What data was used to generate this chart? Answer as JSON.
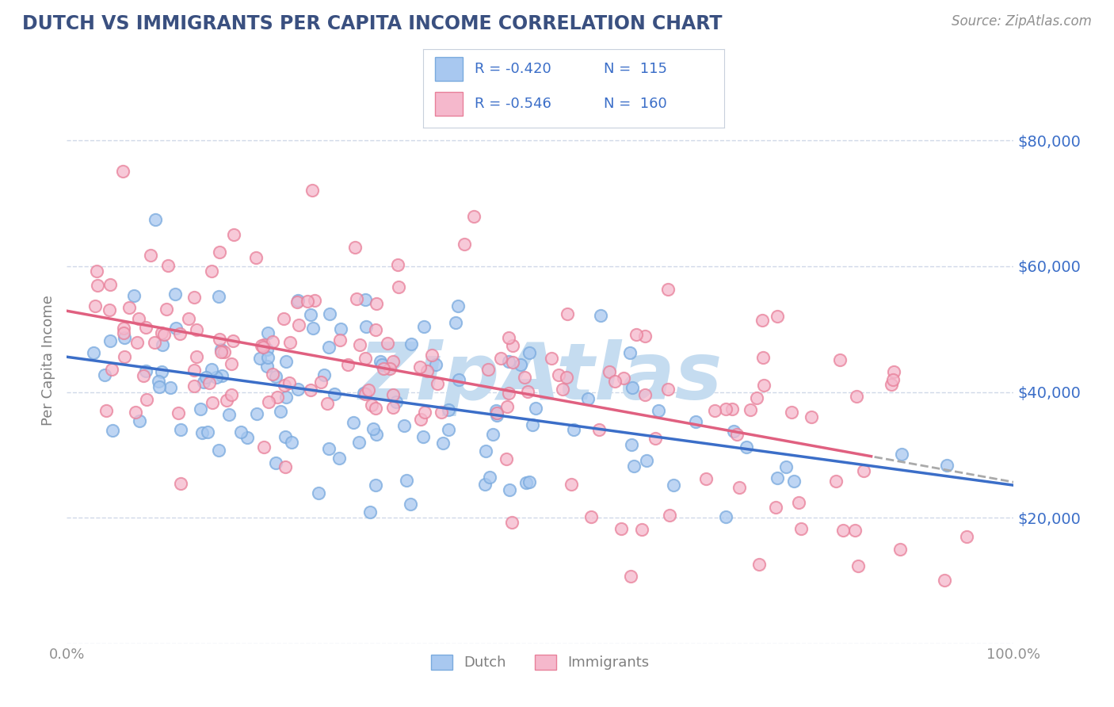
{
  "title": "DUTCH VS IMMIGRANTS PER CAPITA INCOME CORRELATION CHART",
  "source": "Source: ZipAtlas.com",
  "ylabel": "Per Capita Income",
  "xlim": [
    0.0,
    1.0
  ],
  "ylim": [
    0,
    90000
  ],
  "dutch_color": "#A8C8F0",
  "dutch_edge_color": "#7AAADE",
  "immigrants_color": "#F5B8CC",
  "immigrants_edge_color": "#E8809A",
  "dutch_line_color": "#3B6EC8",
  "immigrants_line_color": "#E06080",
  "watermark_color": "#C5DCF0",
  "R_dutch": -0.42,
  "N_dutch": 115,
  "R_immigrants": -0.546,
  "N_immigrants": 160,
  "title_color": "#3A5080",
  "source_color": "#909090",
  "legend_text_color": "#3B6EC8",
  "axis_label_color": "#808080",
  "tick_label_color_y": "#3B6EC8",
  "tick_label_color_x": "#909090",
  "background_color": "#FFFFFF",
  "grid_color": "#D0D8E8",
  "marker_size": 120,
  "marker_linewidth": 1.5
}
